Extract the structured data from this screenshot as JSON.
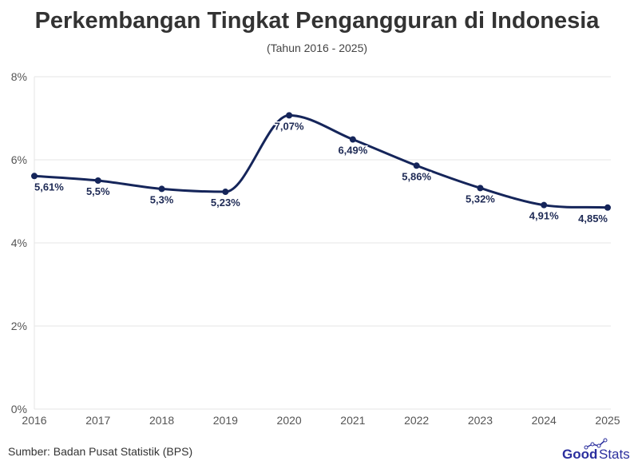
{
  "title": "Perkembangan Tingkat Pengangguran di Indonesia",
  "subtitle": "(Tahun 2016 - 2025)",
  "source": "Sumber: Badan Pusat Statistik (BPS)",
  "logo": "GoodStats",
  "colors": {
    "line": "#15255a",
    "grid": "#e6e6e6",
    "logo": "#2b2f9e"
  },
  "chart_data": {
    "type": "line",
    "title": "Perkembangan Tingkat Pengangguran di Indonesia",
    "subtitle": "(Tahun 2016 - 2025)",
    "categories": [
      "2016",
      "2017",
      "2018",
      "2019",
      "2020",
      "2021",
      "2022",
      "2023",
      "2024",
      "2025"
    ],
    "values": [
      5.61,
      5.5,
      5.3,
      5.23,
      7.07,
      6.49,
      5.86,
      5.32,
      4.91,
      4.85
    ],
    "data_labels": [
      "5,61%",
      "5,5%",
      "5,3%",
      "5,23%",
      "7,07%",
      "6,49%",
      "5,86%",
      "5,32%",
      "4,91%",
      "4,85%"
    ],
    "ylim": [
      0,
      8
    ],
    "yticks": [
      0,
      2,
      4,
      6,
      8
    ],
    "ytick_labels": [
      "0%",
      "2%",
      "4%",
      "6%",
      "8%"
    ],
    "grid": true,
    "smooth": true
  }
}
